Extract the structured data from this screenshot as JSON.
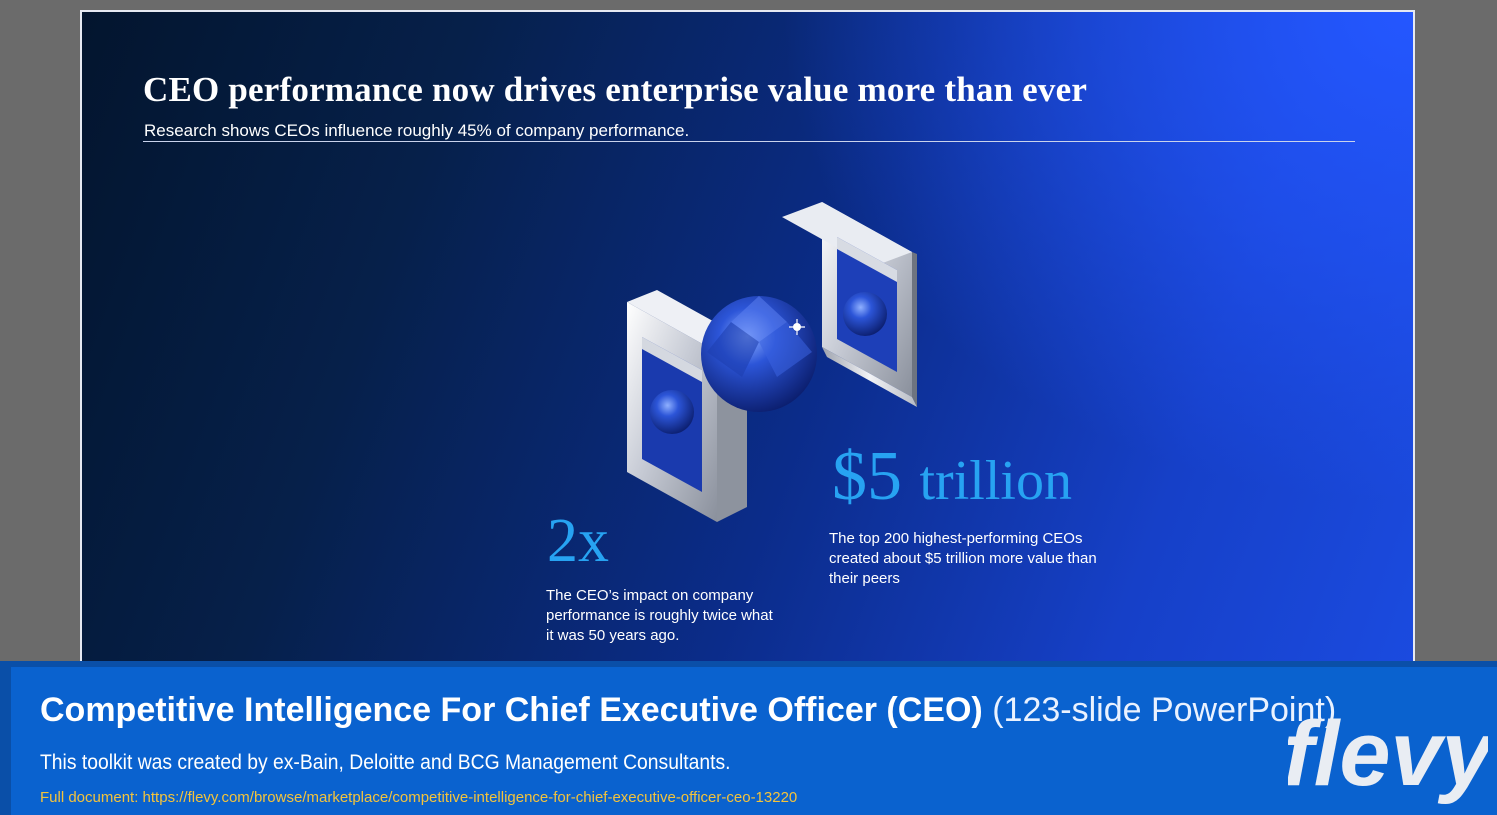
{
  "slide": {
    "title": "CEO performance now drives enterprise value more than ever",
    "subtitle": "Research shows CEOs influence roughly 45% of company performance.",
    "stats": [
      {
        "value": "2x",
        "description": "The CEO’s impact on company performance is roughly twice what it was 50 years ago."
      },
      {
        "value": "$5",
        "unit": "trillion",
        "description": "The top 200 highest-performing CEOs created about $5 trillion more value than their peers"
      }
    ]
  },
  "banner": {
    "title": "Competitive Intelligence For Chief Executive Officer (CEO)",
    "title_extra": "(123-slide PowerPoint)",
    "description": "This toolkit was created by ex-Bain, Deloitte and BCG Management Consultants.",
    "link_text": "Full document: https://flevy.com/browse/marketplace/competitive-intelligence-for-chief-executive-officer-ceo-13220",
    "logo_text": "flevy"
  },
  "colors": {
    "accent_blue": "#27a3f2",
    "banner_blue": "#0a62cf",
    "link_yellow": "#f3c33c"
  }
}
